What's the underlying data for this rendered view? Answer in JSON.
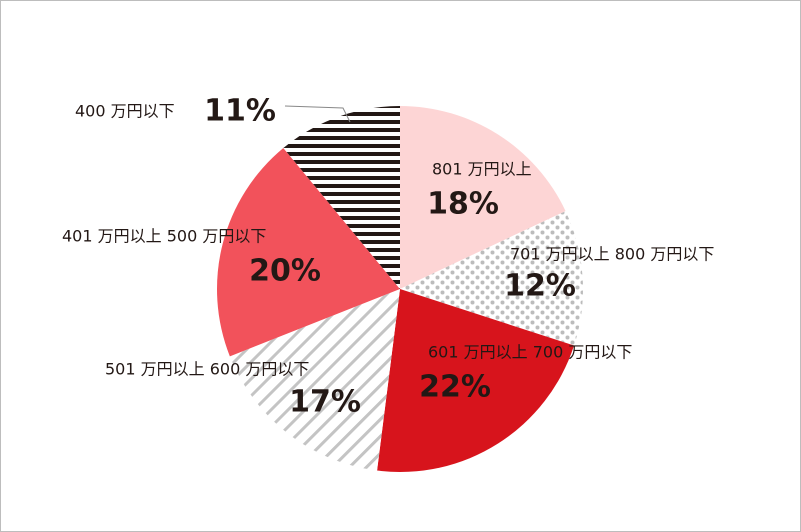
{
  "chart_data": {
    "type": "pie",
    "categories": [
      "801 万円以上",
      "701 万円以上 800 万円以下",
      "601 万円以上 700 万円以下",
      "501 万円以上 600 万円以下",
      "401 万円以上 500 万円以下",
      "400 万円以下"
    ],
    "values": [
      18,
      12,
      22,
      17,
      20,
      11
    ],
    "value_labels": [
      "18%",
      "12%",
      "22%",
      "17%",
      "20%",
      "11%"
    ],
    "colors": [
      "#fdd5d5",
      "#bcbcbc",
      "#d7141c",
      "#c4c4c4",
      "#f2525b",
      "#231815"
    ],
    "patterns": [
      "solid",
      "dots",
      "solid",
      "stripes",
      "solid",
      "hlines"
    ]
  }
}
